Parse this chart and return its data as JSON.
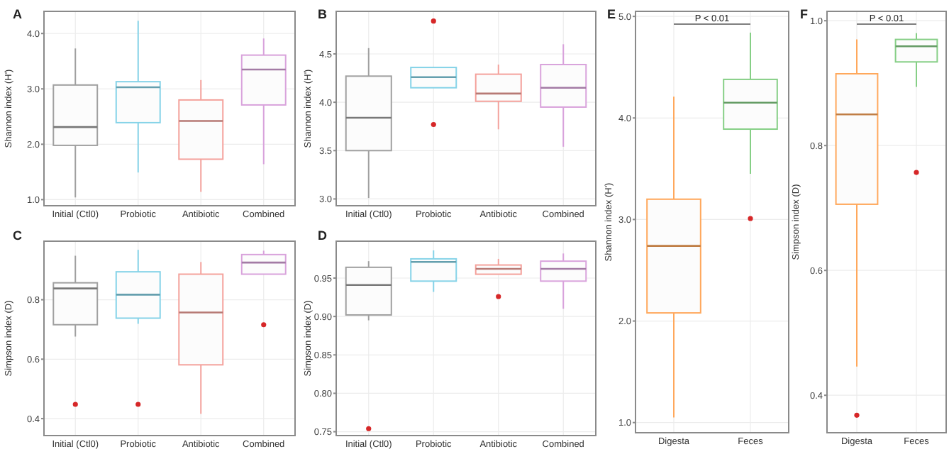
{
  "chart_data": [
    {
      "type": "box",
      "title": "A",
      "ylabel": "Shannon index (H')",
      "categories": [
        "Initial (Ctl0)",
        "Probiotic",
        "Antibiotic",
        "Combined"
      ],
      "colors": [
        "#a0a0a0",
        "#86d3e8",
        "#f4a29c",
        "#d9a3dc"
      ],
      "boxes": [
        {
          "low": 1.04,
          "q1": 1.98,
          "median": 2.31,
          "q3": 3.07,
          "high": 3.73
        },
        {
          "low": 1.49,
          "q1": 2.39,
          "median": 3.03,
          "q3": 3.13,
          "high": 4.23
        },
        {
          "low": 1.14,
          "q1": 1.73,
          "median": 2.42,
          "q3": 2.8,
          "high": 3.16
        },
        {
          "low": 1.64,
          "q1": 2.71,
          "median": 3.35,
          "q3": 3.61,
          "high": 3.91
        }
      ],
      "ylim": [
        0.89,
        4.4
      ],
      "yticks": [
        {
          "value": 1,
          "label": "1.0"
        },
        {
          "value": 2,
          "label": "2.0"
        },
        {
          "value": 3,
          "label": "3.0"
        },
        {
          "value": 4,
          "label": "4.0"
        }
      ],
      "grid": true
    },
    {
      "type": "box",
      "title": "B",
      "ylabel": "Shannon index (H')",
      "categories": [
        "Initial (Ctl0)",
        "Probiotic",
        "Antibiotic",
        "Combined"
      ],
      "colors": [
        "#a0a0a0",
        "#86d3e8",
        "#f4a29c",
        "#d9a3dc"
      ],
      "boxes": [
        {
          "low": 3.01,
          "q1": 3.5,
          "median": 3.84,
          "q3": 4.27,
          "high": 4.56
        },
        {
          "low": 4.15,
          "q1": 4.15,
          "median": 4.26,
          "q3": 4.36,
          "high": 4.36,
          "outliers": [
            4.84,
            3.77
          ]
        },
        {
          "low": 3.72,
          "q1": 4.01,
          "median": 4.09,
          "q3": 4.29,
          "high": 4.39
        },
        {
          "low": 3.54,
          "q1": 3.95,
          "median": 4.15,
          "q3": 4.39,
          "high": 4.6
        }
      ],
      "ylim": [
        2.93,
        4.94
      ],
      "yticks": [
        {
          "value": 3,
          "label": "3.0"
        },
        3.5,
        {
          "value": 4,
          "label": "4.0"
        },
        4.5
      ],
      "grid": true
    },
    {
      "type": "box",
      "title": "C",
      "ylabel": "Simpson index (D)",
      "categories": [
        "Initial (Ctl0)",
        "Probiotic",
        "Antibiotic",
        "Combined"
      ],
      "colors": [
        "#a0a0a0",
        "#86d3e8",
        "#f4a29c",
        "#d9a3dc"
      ],
      "boxes": [
        {
          "low": 0.676,
          "q1": 0.716,
          "median": 0.838,
          "q3": 0.857,
          "high": 0.948,
          "outliers": [
            0.448
          ]
        },
        {
          "low": 0.719,
          "q1": 0.738,
          "median": 0.817,
          "q3": 0.894,
          "high": 0.968,
          "outliers": [
            0.448
          ]
        },
        {
          "low": 0.416,
          "q1": 0.581,
          "median": 0.757,
          "q3": 0.886,
          "high": 0.927
        },
        {
          "low": 0.886,
          "q1": 0.886,
          "median": 0.925,
          "q3": 0.952,
          "high": 0.965,
          "outliers": [
            0.716
          ]
        }
      ],
      "ylim": [
        0.343,
        0.997
      ],
      "yticks": [
        0.4,
        0.6,
        0.8
      ],
      "grid": true
    },
    {
      "type": "box",
      "title": "D",
      "ylabel": "Simpson index (D)",
      "categories": [
        "Initial (Ctl0)",
        "Probiotic",
        "Antibiotic",
        "Combined"
      ],
      "colors": [
        "#a0a0a0",
        "#86d3e8",
        "#f4a29c",
        "#d9a3dc"
      ],
      "boxes": [
        {
          "low": 0.895,
          "q1": 0.902,
          "median": 0.941,
          "q3": 0.964,
          "high": 0.972,
          "outliers": [
            0.754
          ]
        },
        {
          "low": 0.932,
          "q1": 0.946,
          "median": 0.971,
          "q3": 0.975,
          "high": 0.986
        },
        {
          "low": 0.955,
          "q1": 0.955,
          "median": 0.962,
          "q3": 0.967,
          "high": 0.975,
          "outliers": [
            0.926
          ]
        },
        {
          "low": 0.91,
          "q1": 0.946,
          "median": 0.962,
          "q3": 0.972,
          "high": 0.982
        }
      ],
      "ylim": [
        0.745,
        0.998
      ],
      "yticks": [
        0.75,
        {
          "value": 0.8,
          "label": "0.80"
        },
        0.85,
        {
          "value": 0.9,
          "label": "0.90"
        },
        0.95
      ],
      "grid": true
    },
    {
      "type": "box",
      "title": "E",
      "ylabel": "Shannon index (H')",
      "categories": [
        "Digesta",
        "Feces"
      ],
      "colors": [
        "#ffa85c",
        "#86cf86"
      ],
      "boxes": [
        {
          "low": 1.05,
          "q1": 2.08,
          "median": 2.74,
          "q3": 3.2,
          "high": 4.21
        },
        {
          "low": 3.45,
          "q1": 3.89,
          "median": 4.15,
          "q3": 4.38,
          "high": 4.84,
          "outliers": [
            3.01
          ]
        }
      ],
      "ylim": [
        0.9,
        5.05
      ],
      "yticks": [
        {
          "value": 1,
          "label": "1.0"
        },
        {
          "value": 2,
          "label": "2.0"
        },
        {
          "value": 3,
          "label": "3.0"
        },
        {
          "value": 4,
          "label": "4.0"
        },
        {
          "value": 5,
          "label": "5.0"
        }
      ],
      "grid": true,
      "annotations": [
        "P < 0.01"
      ]
    },
    {
      "type": "box",
      "title": "F",
      "ylabel": "Simpson index (D)",
      "categories": [
        "Digesta",
        "Feces"
      ],
      "colors": [
        "#ffa85c",
        "#86cf86"
      ],
      "boxes": [
        {
          "low": 0.446,
          "q1": 0.706,
          "median": 0.85,
          "q3": 0.915,
          "high": 0.97,
          "outliers": [
            0.368
          ]
        },
        {
          "low": 0.894,
          "q1": 0.934,
          "median": 0.959,
          "q3": 0.97,
          "high": 0.98,
          "outliers": [
            0.757
          ]
        }
      ],
      "ylim": [
        0.34,
        1.015
      ],
      "yticks": [
        0.4,
        0.6,
        0.8,
        {
          "value": 1,
          "label": "1.0"
        }
      ],
      "grid": true,
      "annotations": [
        "P < 0.01"
      ]
    }
  ]
}
